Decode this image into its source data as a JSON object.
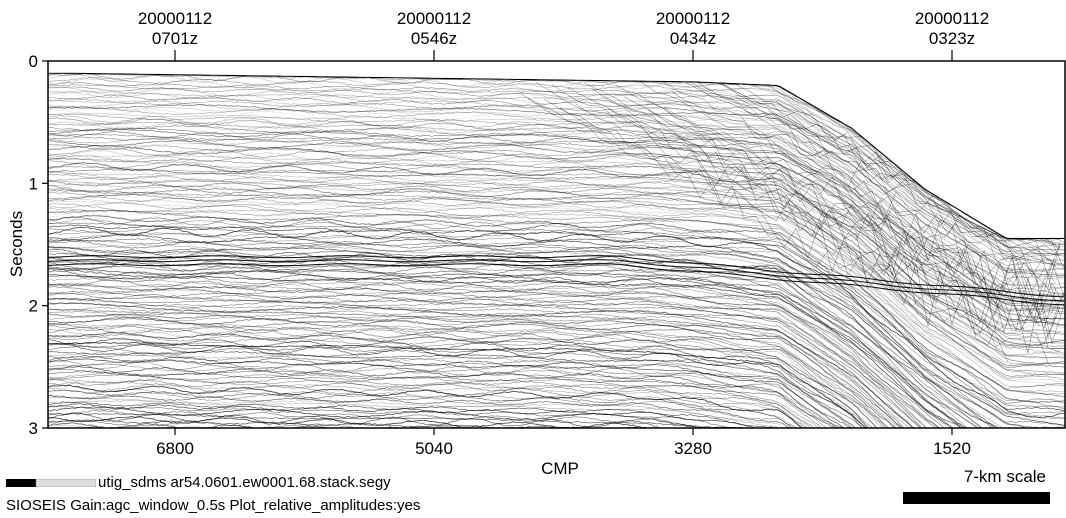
{
  "chart_data": {
    "type": "seismic-section",
    "title": "",
    "xlabel": "CMP",
    "ylabel": "Seconds",
    "x_axis": {
      "reversed": true,
      "ticks": [
        6800,
        5040,
        3280,
        1520
      ],
      "tick_labels": [
        "6800",
        "5040",
        "3280",
        "1520"
      ]
    },
    "y_axis": {
      "range": [
        0,
        3
      ],
      "reversed": true,
      "ticks": [
        0,
        1,
        2,
        3
      ],
      "tick_labels": [
        "0",
        "1",
        "2",
        "3"
      ]
    },
    "time_marks": [
      {
        "date": "20000112",
        "time": "0701z"
      },
      {
        "date": "20000112",
        "time": "0546z"
      },
      {
        "date": "20000112",
        "time": "0434z"
      },
      {
        "date": "20000112",
        "time": "0323z"
      }
    ],
    "seafloor_approx": [
      {
        "cmp": 7500,
        "seconds": 0.1
      },
      {
        "cmp": 3280,
        "seconds": 0.17
      },
      {
        "cmp": 2700,
        "seconds": 0.2
      },
      {
        "cmp": 2200,
        "seconds": 0.55
      },
      {
        "cmp": 1700,
        "seconds": 1.05
      },
      {
        "cmp": 1150,
        "seconds": 1.45
      },
      {
        "cmp": 800,
        "seconds": 1.45
      }
    ],
    "grid": false
  },
  "footer": {
    "file_line": "utig_sdms ar54.0601.ew0001.68.stack.segy",
    "processing_line": "SIOSEIS Gain:agc_window_0.5s Plot_relative_amplitudes:yes",
    "scale_label": "7-km scale"
  }
}
